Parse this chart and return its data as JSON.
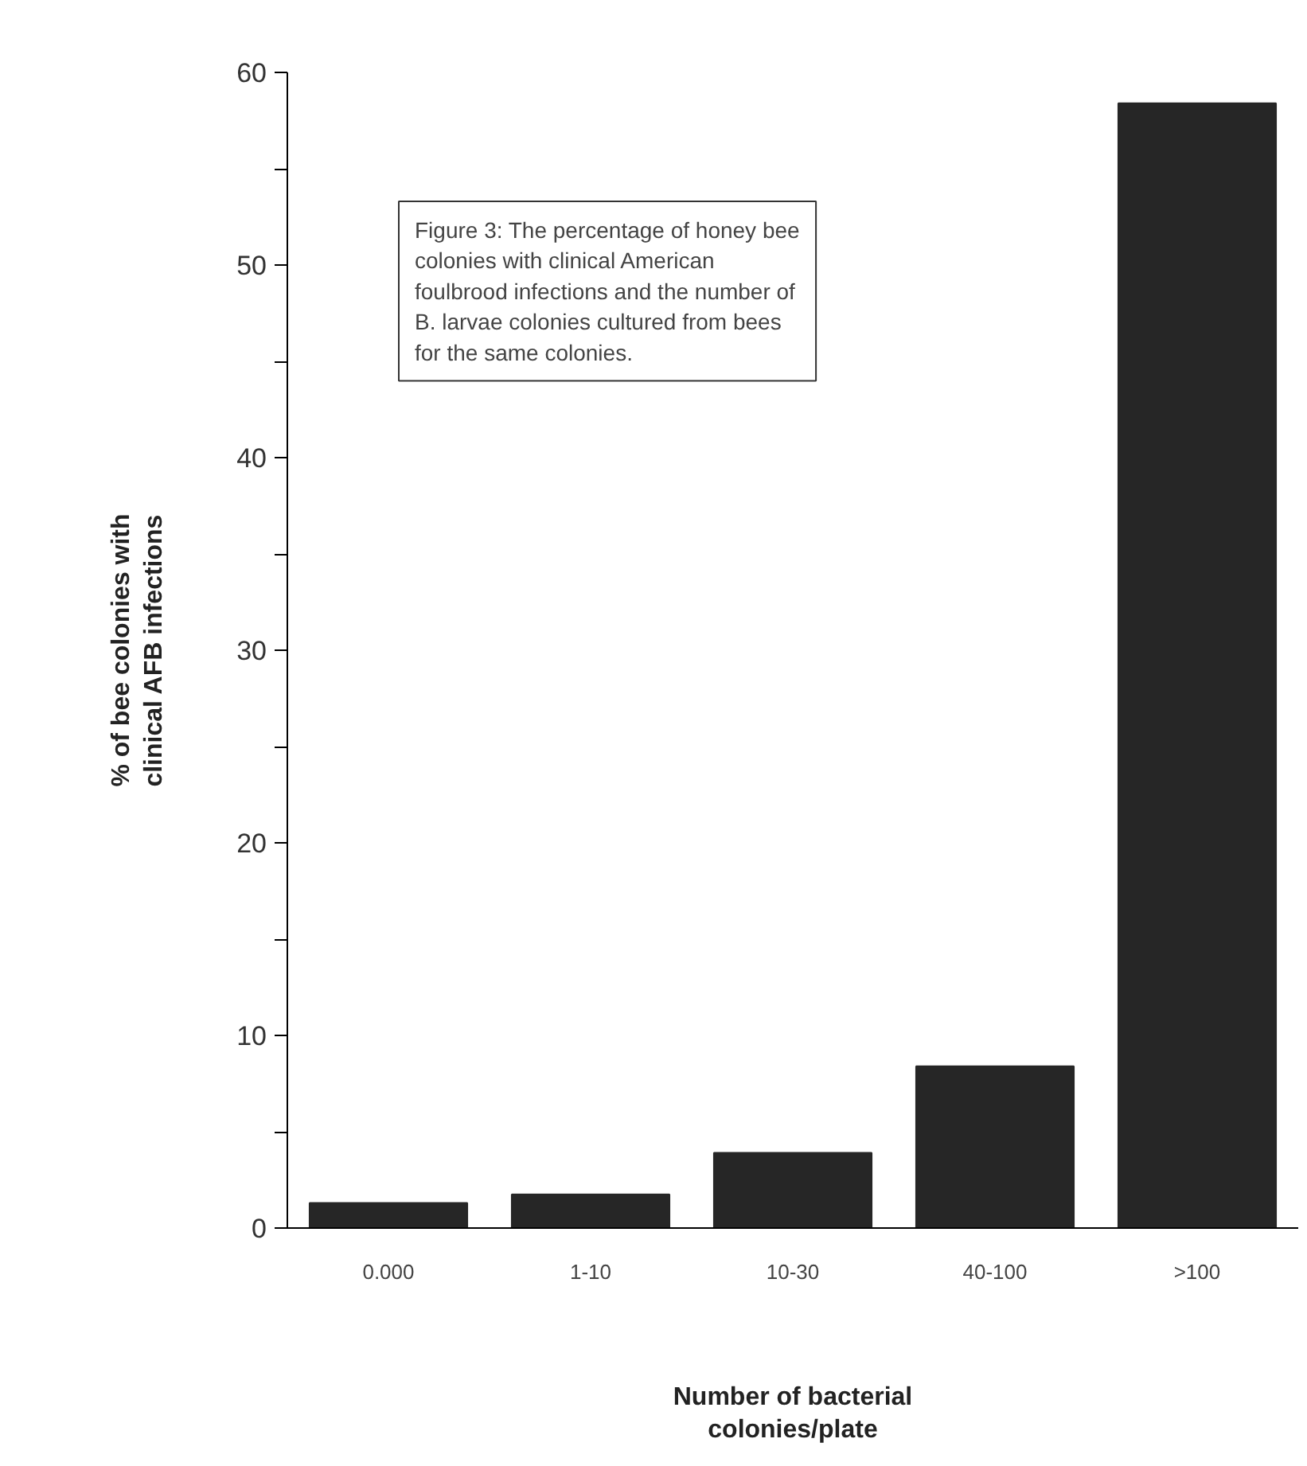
{
  "chart_data": {
    "type": "bar",
    "xlabel": "Number of bacterial colonies/plate",
    "ylabel": "% of bee colonies with clinical AFB infections",
    "categories": [
      "0.000",
      "1-10",
      "10-30",
      "40-100",
      ">100"
    ],
    "values": [
      1.3,
      1.75,
      3.9,
      8.4,
      58.4
    ],
    "color": "#262626",
    "ylim": [
      0,
      60
    ],
    "yticks": [
      0,
      {
        "value": 5,
        "label": null
      },
      10,
      {
        "value": 15,
        "label": null
      },
      20,
      {
        "value": 25,
        "label": null
      },
      30,
      {
        "value": 35,
        "label": null
      },
      40,
      {
        "value": 45,
        "label": null
      },
      50,
      {
        "value": 55,
        "label": null
      },
      60
    ],
    "grid": false,
    "annotations": [
      "Figure 3: The percentage of honey bee colonies with clinical American foulbrood infections and the number of B. larvae colonies cultured from bees for the same colonies."
    ]
  }
}
